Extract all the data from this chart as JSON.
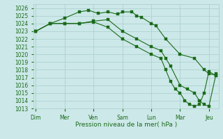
{
  "background_color": "#cce8e8",
  "grid_color": "#aacccc",
  "line_color": "#1a6b1a",
  "marker_color": "#1a6b1a",
  "xlabel": "Pression niveau de la mer( hPa )",
  "xlabel_color": "#1a6b1a",
  "xtick_labels": [
    "Dim",
    "Mer",
    "Ven",
    "Sam",
    "Lun",
    "Mar",
    "Jeu"
  ],
  "xtick_positions": [
    0,
    12,
    24,
    36,
    48,
    60,
    72
  ],
  "xlim": [
    -1,
    76
  ],
  "ylim": [
    1013,
    1026.5
  ],
  "yticks": [
    1013,
    1014,
    1015,
    1016,
    1017,
    1018,
    1019,
    1020,
    1021,
    1022,
    1023,
    1024,
    1025,
    1026
  ],
  "series": [
    {
      "x": [
        0,
        6,
        12,
        18,
        22,
        26,
        30,
        34,
        36,
        40,
        42,
        44,
        48,
        50,
        54,
        60,
        66,
        70,
        72,
        75
      ],
      "y": [
        1023,
        1024,
        1024.7,
        1025.5,
        1025.7,
        1025.3,
        1025.5,
        1025.2,
        1025.5,
        1025.5,
        1025.0,
        1024.8,
        1024.0,
        1023.7,
        1022.0,
        1020.0,
        1019.5,
        1018.0,
        1017.5,
        1017.3
      ]
    },
    {
      "x": [
        0,
        6,
        12,
        18,
        24,
        30,
        36,
        42,
        48,
        52,
        54,
        56,
        60,
        63,
        66,
        68,
        70,
        72,
        75
      ],
      "y": [
        1023,
        1024,
        1024,
        1024.0,
        1024.3,
        1024.5,
        1023.0,
        1022.0,
        1021.0,
        1020.5,
        1019.5,
        1018.5,
        1016.0,
        1015.5,
        1015.0,
        1014.0,
        1013.5,
        1013.3,
        1017.5
      ]
    },
    {
      "x": [
        0,
        6,
        12,
        18,
        24,
        30,
        36,
        42,
        48,
        52,
        54,
        56,
        58,
        60,
        62,
        64,
        66,
        68,
        70,
        72,
        75
      ],
      "y": [
        1023,
        1024,
        1024,
        1024,
        1024.2,
        1023.5,
        1022.0,
        1021.0,
        1020.0,
        1019.5,
        1018.0,
        1016.5,
        1015.5,
        1015.0,
        1014.0,
        1013.5,
        1013.3,
        1013.5,
        1015.0,
        1017.8,
        1017.2
      ]
    }
  ]
}
